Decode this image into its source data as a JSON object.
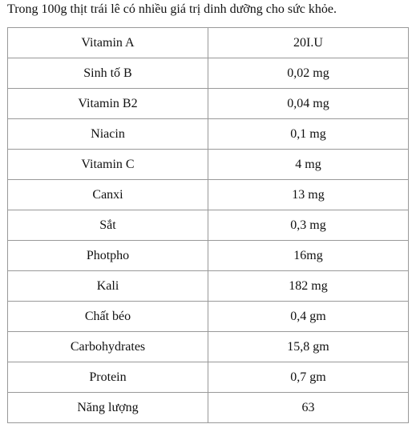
{
  "intro": "Trong 100g thịt trái lê có nhiều giá trị dinh dưỡng cho sức khỏe.",
  "table": {
    "rows": [
      [
        "Vitamin A",
        "20I.U"
      ],
      [
        "Sinh tố B",
        "0,02 mg"
      ],
      [
        "Vitamin B2",
        "0,04 mg"
      ],
      [
        "Niacin",
        "0,1 mg"
      ],
      [
        "Vitamin C",
        "4 mg"
      ],
      [
        "Canxi",
        "13 mg"
      ],
      [
        "Sắt",
        "0,3 mg"
      ],
      [
        "Photpho",
        "16mg"
      ],
      [
        "Kali",
        "182 mg"
      ],
      [
        "Chất béo",
        "0,4 gm"
      ],
      [
        "Carbohydrates",
        "15,8 gm"
      ],
      [
        "Protein",
        "0,7 gm"
      ],
      [
        "Năng lượng",
        "63"
      ]
    ]
  }
}
